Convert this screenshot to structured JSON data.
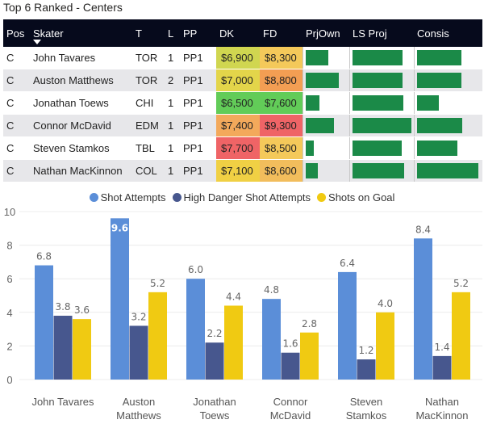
{
  "title": "Top 6 Ranked - Centers",
  "table": {
    "columns": [
      "Pos",
      "Skater",
      "T",
      "L",
      "PP",
      "DK",
      "FD",
      "PrjOwn",
      "LS Proj",
      "Consis"
    ],
    "rows": [
      {
        "pos": "C",
        "skater": "John Tavares",
        "team": "TOR",
        "line": "1",
        "pp": "PP1",
        "dk": "$6,900",
        "fd": "$8,300",
        "dk_color": "#d0d650",
        "fd_color": "#f4c95a",
        "prj_own": 0.53,
        "ls_proj": 0.85,
        "consis": 0.71
      },
      {
        "pos": "C",
        "skater": "Auston Matthews",
        "team": "TOR",
        "line": "2",
        "pp": "PP1",
        "dk": "$7,000",
        "fd": "$8,800",
        "dk_color": "#e3d54a",
        "fd_color": "#f39e53",
        "prj_own": 0.78,
        "ls_proj": 0.85,
        "consis": 0.71
      },
      {
        "pos": "C",
        "skater": "Jonathan Toews",
        "team": "CHI",
        "line": "1",
        "pp": "PP1",
        "dk": "$6,500",
        "fd": "$7,600",
        "dk_color": "#62cc58",
        "fd_color": "#62cc58",
        "prj_own": 0.33,
        "ls_proj": 0.86,
        "consis": 0.35
      },
      {
        "pos": "C",
        "skater": "Connor McDavid",
        "team": "EDM",
        "line": "1",
        "pp": "PP1",
        "dk": "$7,400",
        "fd": "$9,300",
        "dk_color": "#f3a95b",
        "fd_color": "#ef6466",
        "prj_own": 0.67,
        "ls_proj": 1.0,
        "consis": 0.72
      },
      {
        "pos": "C",
        "skater": "Steven Stamkos",
        "team": "TBL",
        "line": "1",
        "pp": "PP1",
        "dk": "$7,700",
        "fd": "$8,500",
        "dk_color": "#ef6466",
        "fd_color": "#f4c95a",
        "prj_own": 0.2,
        "ls_proj": 0.83,
        "consis": 0.64
      },
      {
        "pos": "C",
        "skater": "Nathan MacKinnon",
        "team": "COL",
        "line": "1",
        "pp": "PP1",
        "dk": "$7,100",
        "fd": "$8,600",
        "dk_color": "#f0d044",
        "fd_color": "#f2bd5c",
        "prj_own": 0.28,
        "ls_proj": 0.88,
        "consis": 0.98
      }
    ]
  },
  "chart_data": {
    "type": "bar",
    "categories": [
      "John Tavares",
      "Auston Matthews",
      "Jonathan Toews",
      "Connor McDavid",
      "Steven Stamkos",
      "Nathan MacKinnon"
    ],
    "category_lines": [
      [
        "John Tavares"
      ],
      [
        "Auston",
        "Matthews"
      ],
      [
        "Jonathan",
        "Toews"
      ],
      [
        "Connor",
        "McDavid"
      ],
      [
        "Steven",
        "Stamkos"
      ],
      [
        "Nathan",
        "MacKinnon"
      ]
    ],
    "series": [
      {
        "name": "Shot Attempts",
        "color": "#5b8ed8",
        "values": [
          6.8,
          9.6,
          6.0,
          4.8,
          6.4,
          8.4
        ]
      },
      {
        "name": "High Danger Shot Attempts",
        "color": "#47578e",
        "values": [
          3.8,
          3.2,
          2.2,
          1.6,
          1.2,
          1.4
        ]
      },
      {
        "name": "Shots on Goal",
        "color": "#f0ca12",
        "values": [
          3.6,
          5.2,
          4.4,
          2.8,
          4.0,
          5.2
        ]
      }
    ],
    "data_labels": [
      [
        "6.8",
        "3.8",
        "3.6"
      ],
      [
        "9.6",
        "3.2",
        "5.2"
      ],
      [
        "6.0",
        "2.2",
        "4.4"
      ],
      [
        "4.8",
        "1.6",
        "2.8"
      ],
      [
        "6.4",
        "1.2",
        "4.0"
      ],
      [
        "8.4",
        "1.4",
        "5.2"
      ]
    ],
    "yticks": [
      0,
      2,
      4,
      6,
      8,
      10
    ],
    "ylim": [
      0,
      10
    ],
    "legend_position": "top-center"
  }
}
